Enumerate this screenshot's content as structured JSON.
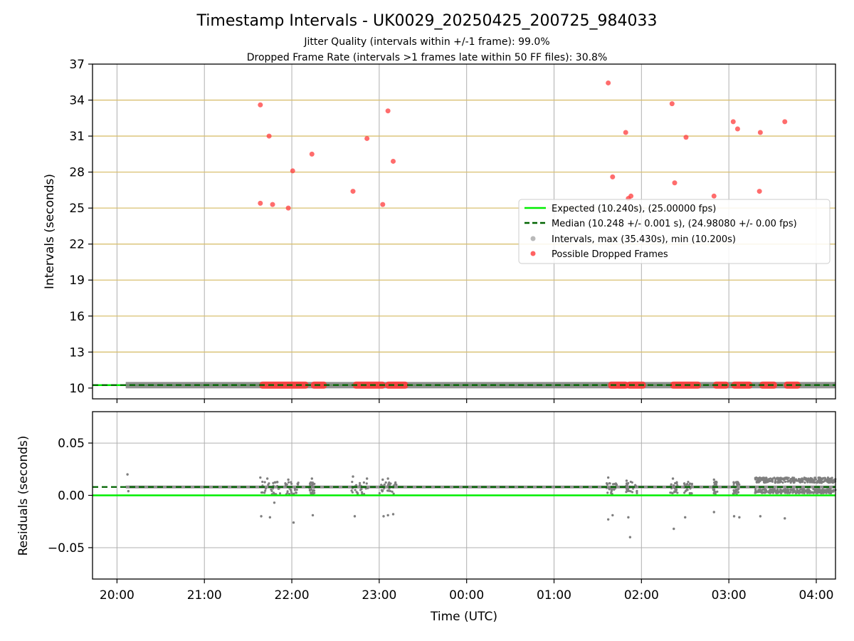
{
  "chart_data": [
    {
      "type": "scatter",
      "title": "Timestamp Intervals - UK0029_20250425_200725_984033",
      "subtitle_lines": [
        "Jitter Quality (intervals within +/-1 frame): 99.0%",
        "Dropped Frame Rate (intervals >1 frames late within 50 FF files): 30.8%"
      ],
      "xlabel": "",
      "ylabel": "Intervals (seconds)",
      "x_range_hours": [
        19.72,
        28.22
      ],
      "ylim": [
        9.1,
        37
      ],
      "yticks": [
        10,
        13,
        16,
        19,
        22,
        25,
        28,
        31,
        34,
        37
      ],
      "ytick_labels": [
        "10",
        "13",
        "16",
        "19",
        "22",
        "25",
        "28",
        "31",
        "34",
        "37"
      ],
      "gridlines": [
        13,
        16,
        19,
        22,
        25,
        28,
        31,
        34
      ],
      "legend_position": "center-right",
      "legend": [
        "Expected (10.240s), (25.00000 fps)",
        "Median (10.248 +/- 0.001 s), (24.98080 +/- 0.00 fps)",
        "Intervals, max (35.430s), min (10.200s)",
        "Possible Dropped Frames"
      ],
      "expected_interval": 10.24,
      "median_interval": 10.248,
      "interval_band": {
        "x_start": 20.1,
        "x_end": 28.22,
        "y": 10.24
      },
      "dropped_frame_runs": [
        {
          "x_start": 21.63,
          "x_end": 22.19
        },
        {
          "x_start": 22.22,
          "x_end": 22.4
        },
        {
          "x_start": 22.7,
          "x_end": 23.07
        },
        {
          "x_start": 23.07,
          "x_end": 23.33
        },
        {
          "x_start": 25.62,
          "x_end": 25.85
        },
        {
          "x_start": 25.83,
          "x_end": 26.05
        },
        {
          "x_start": 26.33,
          "x_end": 26.68
        },
        {
          "x_start": 26.82,
          "x_end": 27.0
        },
        {
          "x_start": 27.03,
          "x_end": 27.27
        },
        {
          "x_start": 27.35,
          "x_end": 27.55
        },
        {
          "x_start": 27.63,
          "x_end": 27.82
        }
      ],
      "dropped_frames": [
        {
          "x": 21.64,
          "y": 33.6
        },
        {
          "x": 21.64,
          "y": 25.4
        },
        {
          "x": 21.74,
          "y": 31.0
        },
        {
          "x": 21.78,
          "y": 25.3
        },
        {
          "x": 21.96,
          "y": 25.0
        },
        {
          "x": 22.01,
          "y": 28.1
        },
        {
          "x": 22.23,
          "y": 29.5
        },
        {
          "x": 22.7,
          "y": 26.4
        },
        {
          "x": 22.86,
          "y": 30.8
        },
        {
          "x": 23.04,
          "y": 25.3
        },
        {
          "x": 23.1,
          "y": 33.1
        },
        {
          "x": 23.16,
          "y": 28.9
        },
        {
          "x": 25.62,
          "y": 35.43
        },
        {
          "x": 25.67,
          "y": 27.6
        },
        {
          "x": 25.82,
          "y": 31.3
        },
        {
          "x": 25.85,
          "y": 25.8
        },
        {
          "x": 25.88,
          "y": 26.0
        },
        {
          "x": 26.35,
          "y": 33.7
        },
        {
          "x": 26.38,
          "y": 27.1
        },
        {
          "x": 26.51,
          "y": 30.9
        },
        {
          "x": 26.83,
          "y": 26.0
        },
        {
          "x": 27.05,
          "y": 32.2
        },
        {
          "x": 27.1,
          "y": 31.6
        },
        {
          "x": 27.35,
          "y": 26.4
        },
        {
          "x": 27.36,
          "y": 31.3
        },
        {
          "x": 27.64,
          "y": 32.2
        }
      ]
    },
    {
      "type": "scatter",
      "title": "",
      "xlabel": "Time (UTC)",
      "ylabel": "Residuals (seconds)",
      "x_range_hours": [
        19.72,
        28.22
      ],
      "ylim": [
        -0.08,
        0.08
      ],
      "yticks": [
        -0.05,
        0.0,
        0.05
      ],
      "ytick_labels": [
        "−0.05",
        "0.00",
        "0.05"
      ],
      "xticks_hours": [
        20,
        21,
        22,
        23,
        24,
        25,
        26,
        27,
        28
      ],
      "xtick_labels": [
        "20:00",
        "21:00",
        "22:00",
        "23:00",
        "00:00",
        "01:00",
        "02:00",
        "03:00",
        "04:00"
      ],
      "expected_residual": 0.0,
      "median_residual": 0.008,
      "residual_band": {
        "x_start": 20.1,
        "x_end": 28.22,
        "y": 0.008
      },
      "dense_region": {
        "x_start": 27.3,
        "x_end": 28.22,
        "y_low": 0.002,
        "y_high": 0.017
      },
      "clusters": [
        {
          "x_start": 21.62,
          "x_end": 21.88
        },
        {
          "x_start": 21.92,
          "x_end": 22.08
        },
        {
          "x_start": 22.2,
          "x_end": 22.26
        },
        {
          "x_start": 22.68,
          "x_end": 22.88
        },
        {
          "x_start": 23.0,
          "x_end": 23.2
        },
        {
          "x_start": 25.6,
          "x_end": 25.72
        },
        {
          "x_start": 25.82,
          "x_end": 25.95
        },
        {
          "x_start": 26.33,
          "x_end": 26.42
        },
        {
          "x_start": 26.48,
          "x_end": 26.58
        },
        {
          "x_start": 26.82,
          "x_end": 26.87
        },
        {
          "x_start": 27.05,
          "x_end": 27.12
        }
      ],
      "outliers": [
        {
          "x": 20.12,
          "y": 0.02
        },
        {
          "x": 20.13,
          "y": 0.004
        },
        {
          "x": 21.65,
          "y": -0.02
        },
        {
          "x": 21.75,
          "y": -0.021
        },
        {
          "x": 21.8,
          "y": -0.007
        },
        {
          "x": 22.02,
          "y": -0.026
        },
        {
          "x": 22.24,
          "y": -0.019
        },
        {
          "x": 22.72,
          "y": -0.02
        },
        {
          "x": 23.05,
          "y": -0.02
        },
        {
          "x": 23.1,
          "y": -0.019
        },
        {
          "x": 23.16,
          "y": -0.018
        },
        {
          "x": 25.62,
          "y": -0.023
        },
        {
          "x": 25.67,
          "y": -0.019
        },
        {
          "x": 25.85,
          "y": -0.021
        },
        {
          "x": 25.87,
          "y": -0.04
        },
        {
          "x": 26.37,
          "y": -0.032
        },
        {
          "x": 26.5,
          "y": -0.021
        },
        {
          "x": 26.83,
          "y": -0.016
        },
        {
          "x": 27.06,
          "y": -0.02
        },
        {
          "x": 27.12,
          "y": -0.021
        },
        {
          "x": 27.36,
          "y": -0.02
        },
        {
          "x": 27.64,
          "y": -0.022
        },
        {
          "x": 21.64,
          "y": 0.017
        },
        {
          "x": 21.72,
          "y": 0.016
        },
        {
          "x": 21.96,
          "y": 0.015
        },
        {
          "x": 22.23,
          "y": 0.016
        },
        {
          "x": 22.7,
          "y": 0.018
        },
        {
          "x": 22.86,
          "y": 0.016
        },
        {
          "x": 23.04,
          "y": 0.015
        },
        {
          "x": 23.1,
          "y": 0.016
        },
        {
          "x": 25.62,
          "y": 0.017
        },
        {
          "x": 25.83,
          "y": 0.014
        },
        {
          "x": 26.36,
          "y": 0.016
        },
        {
          "x": 26.83,
          "y": 0.015
        }
      ]
    }
  ],
  "colors": {
    "expected": "#00ee00",
    "median": "#006400",
    "dropped": "#ff3b3b",
    "interval": "#7f7f7f",
    "grid_h": "#d9c070",
    "grid_v": "#b0b0b0"
  }
}
